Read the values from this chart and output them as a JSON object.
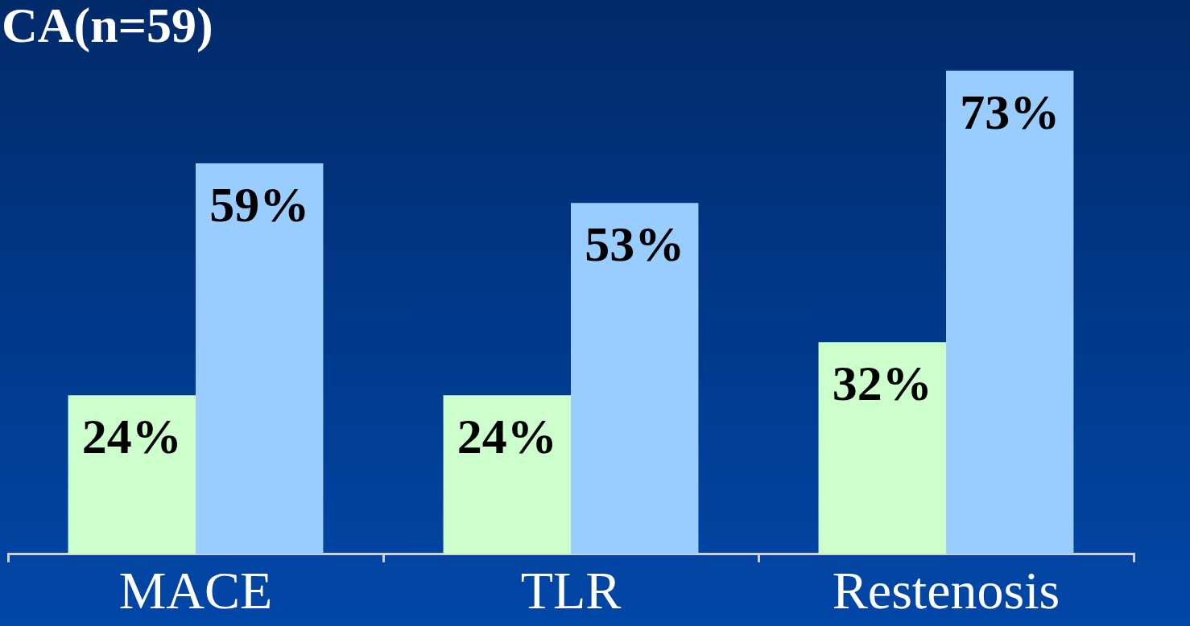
{
  "chart_data": {
    "type": "bar",
    "title": "CA(n=59)",
    "categories": [
      "MACE",
      "TLR",
      "Restenosis"
    ],
    "series": [
      {
        "color": "#ccffcc",
        "values": [
          24,
          24,
          32
        ],
        "value_labels": [
          "24%",
          "24%",
          "32%"
        ]
      },
      {
        "color": "#99ccff",
        "values": [
          59,
          53,
          73
        ],
        "value_labels": [
          "59%",
          "53%",
          "73%"
        ]
      }
    ],
    "legend": false,
    "grid": false
  }
}
